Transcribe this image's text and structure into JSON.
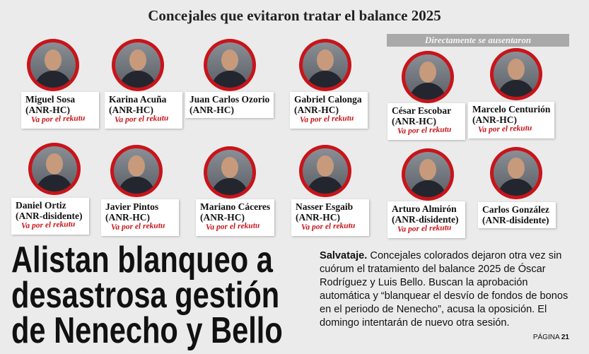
{
  "header": {
    "title": "Concejales que evitaron tratar el balance 2025"
  },
  "section_label": "Directamente se ausentaron",
  "people": [
    {
      "name": "Miguel Sosa",
      "party": "(ANR-HC)",
      "tag": "Va por el rekutu"
    },
    {
      "name": "Karina Acuña",
      "party": "(ANR-HC)",
      "tag": "Va por el rekutu"
    },
    {
      "name": "Juan Carlos Ozorio",
      "party": "(ANR-HC)"
    },
    {
      "name": "Gabriel Calonga",
      "party": "(ANR-HC)",
      "tag": "Va por el rekutu"
    },
    {
      "name": "César Escobar",
      "party": "(ANR-HC)",
      "tag": "Va por el rekutu"
    },
    {
      "name": "Marcelo Centurión",
      "party": "(ANR-HC)",
      "tag": "Va por el rekutu"
    },
    {
      "name": "Daniel Ortiz",
      "party": "(ANR-disidente)",
      "tag": "Va por el rekutu"
    },
    {
      "name": "Javier Pintos",
      "party": "(ANR-HC)",
      "tag": "Va por el rekutu"
    },
    {
      "name": "Mariano Cáceres",
      "party": "(ANR-HC)",
      "tag": "Va por el rekutu"
    },
    {
      "name": "Nasser Esgaib",
      "party": "(ANR-HC)",
      "tag": "Va por el rekutu"
    },
    {
      "name": "Arturo Almirón",
      "party": "(ANR-disidente)",
      "tag": "Va por el rekutu"
    },
    {
      "name": "Carlos González",
      "party": "(ANR-disidente)"
    }
  ],
  "headline": [
    "Alistan blanqueo a",
    "desastrosa gestión",
    "de Nenecho y Bello"
  ],
  "body": {
    "lead": "Salvataje.",
    "text": "Concejales colorados dejaron otra vez sin cuórum el tratamiento del balance 2025 de Óscar Rodríguez y Luis Bello. Buscan la aprobación automática y “blanquear el desvío de fondos de bonos en el periodo de Nenecho”, acusa la oposición. El domingo intentarán de nuevo otra sesión."
  },
  "page": {
    "label": "PÁGINA",
    "number": "21"
  }
}
